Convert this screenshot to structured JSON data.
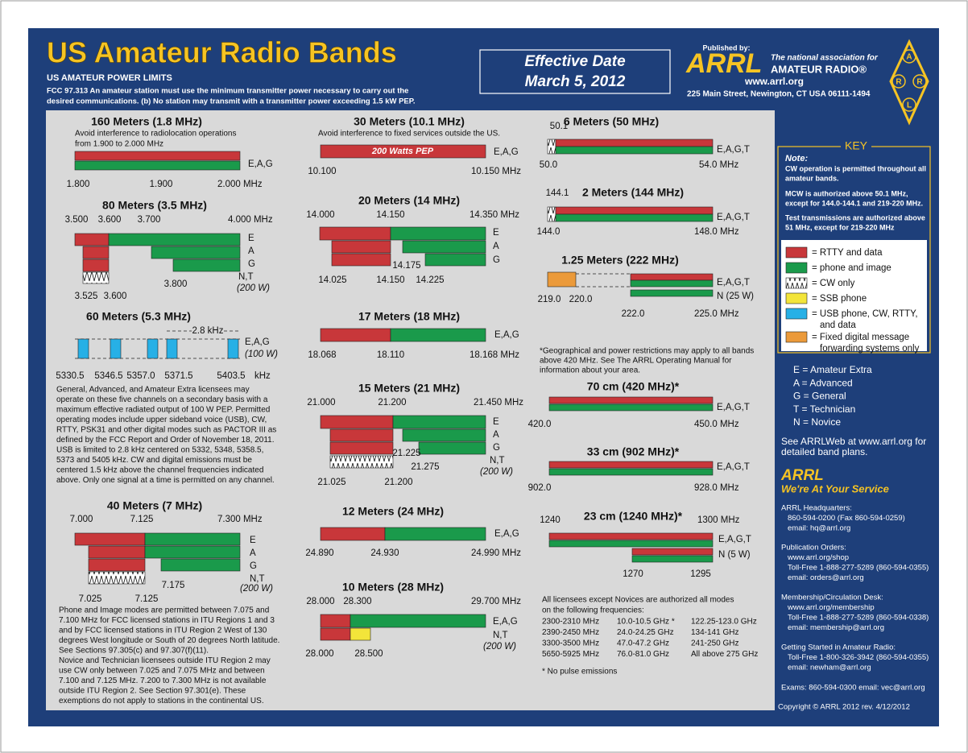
{
  "header": {
    "title": "US Amateur Radio Bands",
    "subtitle": "US AMATEUR POWER LIMITS",
    "fcc": [
      "FCC 97.313   An amateur station must use the minimum transmitter power necessary to carry out the",
      "desired communications.   (b) No station may transmit with a transmitter power exceeding 1.5 kW PEP."
    ],
    "effective": [
      "Effective Date",
      "March 5, 2012"
    ],
    "published_by": "Published by:",
    "arrl": "ARRL",
    "tagline": "The national association for",
    "amateur_radio": "AMATEUR RADIO®",
    "web": "www.arrl.org",
    "address": "225 Main Street, Newington, CT  USA  06111-1494",
    "logo": [
      "A",
      "R",
      "R",
      "L"
    ]
  },
  "bands": [
    {
      "title": "160 Meters (1.8 MHz)",
      "note": [
        "Avoid interference to radiolocation operations",
        "from 1.900 to 2.000 MHz"
      ],
      "freqs": [
        "1.800",
        "1.900",
        "2.000 MHz"
      ],
      "modes": [
        "E,A,G"
      ]
    },
    {
      "title": "80 Meters (3.5 MHz)",
      "freqs": [
        "3.500",
        "3.600",
        "3.700",
        "4.000 MHz",
        "3.525",
        "3.600",
        "3.800"
      ],
      "modes": [
        "E",
        "A",
        "G",
        "N,T",
        "(200 W)"
      ]
    },
    {
      "title": "60 Meters (5.3 MHz)",
      "freqs": [
        "2.8 kHz",
        "5330.5",
        "5346.5",
        "5357.0",
        "5371.5",
        "5403.5",
        "kHz"
      ],
      "modes": [
        "E,A,G",
        "(100 W)"
      ],
      "text": [
        "General, Advanced, and Amateur Extra licensees may",
        "operate on these five channels on a secondary basis with a",
        "maximum effective radiated output of 100 W PEP. Permitted",
        "operating modes include upper sideband voice (USB), CW,",
        "RTTY, PSK31 and other digital modes such as PACTOR III as",
        "defined by the FCC Report and Order of November 18, 2011.",
        "USB is limited to 2.8 kHz centered on 5332, 5348, 5358.5,",
        "5373 and 5405 kHz. CW and digital emissions must be",
        "centered 1.5 kHz above the channel frequencies indicated",
        "above. Only one signal at a time is permitted on any channel."
      ]
    },
    {
      "title": "40 Meters (7 MHz)",
      "freqs": [
        "7.000",
        "7.125",
        "7.300 MHz",
        "7.175",
        "7.025",
        "7.125"
      ],
      "modes": [
        "E",
        "A",
        "G",
        "N,T",
        "(200 W)"
      ],
      "text": [
        "Phone and Image modes are permitted between 7.075 and",
        "7.100 MHz for FCC licensed stations in ITU Regions 1 and 3",
        "and by FCC licensed stations in ITU Region 2 West of 130",
        "degrees West longitude or South of 20 degrees North latitude.",
        "See Sections 97.305(c) and 97.307(f)(11).",
        "Novice and Technician  licensees outside ITU Region 2 may",
        "use CW only between 7.025 and 7.075 MHz and between",
        "7.100 and 7.125 MHz. 7.200 to 7.300 MHz is not available",
        "outside ITU Region 2. See Section 97.301(e). These",
        "exemptions do not apply to stations in the continental US."
      ]
    },
    {
      "title": "30 Meters (10.1 MHz)",
      "note": [
        "Avoid interference to fixed services outside the US."
      ],
      "freqs": [
        "10.100",
        "10.150 MHz"
      ],
      "modes": [
        "E,A,G"
      ],
      "bar_label": "200 Watts PEP"
    },
    {
      "title": "20 Meters (14 MHz)",
      "freqs": [
        "14.000",
        "14.150",
        "14.350 MHz",
        "14.175",
        "14.025",
        "14.150",
        "14.225"
      ],
      "modes": [
        "E",
        "A",
        "G"
      ]
    },
    {
      "title": "17 Meters (18 MHz)",
      "freqs": [
        "18.068",
        "18.110",
        "18.168 MHz"
      ],
      "modes": [
        "E,A,G"
      ]
    },
    {
      "title": "15 Meters (21 MHz)",
      "freqs": [
        "21.000",
        "21.200",
        "21.450 MHz",
        "21.225",
        "21.275",
        "21.025",
        "21.200"
      ],
      "modes": [
        "E",
        "A",
        "G",
        "N,T",
        "(200 W)"
      ]
    },
    {
      "title": "12 Meters (24 MHz)",
      "freqs": [
        "24.890",
        "24.930",
        "24.990 MHz"
      ],
      "modes": [
        "E,A,G"
      ]
    },
    {
      "title": "10 Meters (28 MHz)",
      "freqs": [
        "28.000",
        "28.300",
        "29.700 MHz",
        "28.000",
        "28.500"
      ],
      "modes": [
        "E,A,G",
        "N,T",
        "(200 W)"
      ]
    },
    {
      "title": "6 Meters (50 MHz)",
      "freqs": [
        "50.1",
        "50.0",
        "54.0 MHz"
      ],
      "modes": [
        "E,A,G,T"
      ]
    },
    {
      "title": "2 Meters (144 MHz)",
      "freqs": [
        "144.1",
        "144.0",
        "148.0 MHz"
      ],
      "modes": [
        "E,A,G,T"
      ]
    },
    {
      "title": "1.25 Meters (222 MHz)",
      "freqs": [
        "219.0",
        "220.0",
        "222.0",
        "225.0 MHz"
      ],
      "modes": [
        "E,A,G,T",
        "N (25 W)"
      ]
    },
    {
      "title": "70 cm (420 MHz)*",
      "freqs": [
        "420.0",
        "450.0 MHz"
      ],
      "modes": [
        "E,A,G,T"
      ]
    },
    {
      "title": "33 cm (902 MHz)*",
      "freqs": [
        "902.0",
        "928.0 MHz"
      ],
      "modes": [
        "E,A,G,T"
      ]
    },
    {
      "title": "23 cm (1240 MHz)*",
      "freqs": [
        "1240",
        "1300 MHz",
        "1270",
        "1295"
      ],
      "modes": [
        "E,A,G,T",
        "N (5 W)"
      ]
    }
  ],
  "geo_note": [
    "*Geographical and power restrictions may apply to all bands",
    "above 420 MHz. See The ARRL Operating Manual for",
    "information about your area."
  ],
  "all_modes": {
    "intro": [
      "All licensees except Novices are authorized all modes",
      "on the following frequencies:"
    ],
    "rows": [
      [
        "2300-2310 MHz",
        "10.0-10.5 GHz *",
        "122.25-123.0 GHz"
      ],
      [
        "2390-2450 MHz",
        "24.0-24.25 GHz",
        "134-141 GHz"
      ],
      [
        "3300-3500 MHz",
        "47.0-47.2 GHz",
        "241-250 GHz"
      ],
      [
        "5650-5925 MHz",
        "76.0-81.0 GHz",
        "All above 275 GHz"
      ]
    ],
    "footnote": "* No pulse emissions"
  },
  "key": {
    "title": "KEY",
    "note_heading": "Note:",
    "notes": [
      "CW operation is permitted throughout all",
      "amateur bands.",
      "MCW is authorized above 50.1 MHz,",
      "except for 144.0-144.1 and 219-220 MHz.",
      "Test transmissions are authorized above",
      "51 MHz, except for 219-220 MHz"
    ],
    "items": [
      [
        "= RTTY and data"
      ],
      [
        "= phone and image"
      ],
      [
        "= CW only"
      ],
      [
        "= SSB phone"
      ],
      [
        "= USB phone, CW, RTTY,",
        "and data"
      ],
      [
        "= Fixed digital message",
        "forwarding systems only"
      ]
    ],
    "licenses": [
      "E = Amateur Extra",
      "A = Advanced",
      "G = General",
      "T = Technician",
      "N = Novice"
    ]
  },
  "web_note": [
    "See ARRLWeb at www.arrl.org for",
    "detailed band plans."
  ],
  "service": {
    "title": "ARRL",
    "tagline": "We're At Your Service"
  },
  "contacts": [
    {
      "heading": "ARRL Headquarters:",
      "lines": [
        "860-594-0200  (Fax 860-594-0259)",
        "email:  hq@arrl.org"
      ]
    },
    {
      "heading": "Publication Orders:",
      "lines": [
        "www.arrl.org/shop",
        "Toll-Free 1-888-277-5289 (860-594-0355)",
        "email: orders@arrl.org"
      ]
    },
    {
      "heading": "Membership/Circulation Desk:",
      "lines": [
        "www.arrl.org/membership",
        "Toll-Free 1-888-277-5289 (860-594-0338)",
        "email: membership@arrl.org"
      ]
    },
    {
      "heading": "Getting Started in Amateur Radio:",
      "lines": [
        "Toll-Free 1-800-326-3942 (860-594-0355)",
        "email: newham@arrl.org"
      ]
    }
  ],
  "exams": "Exams:  860-594-0300    email: vec@arrl.org",
  "copyright": "Copyright © ARRL 2012     rev. 4/12/2012"
}
